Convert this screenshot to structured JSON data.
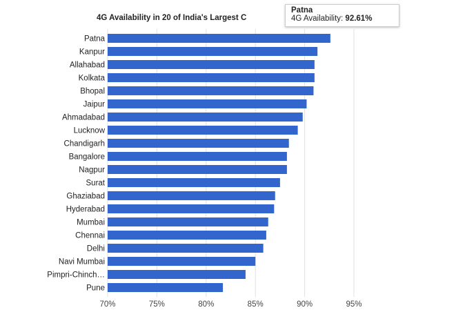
{
  "chart_data": {
    "type": "bar",
    "orientation": "horizontal",
    "title": "4G Availability in 20 of India's Largest C",
    "xlabel": "",
    "ylabel": "",
    "xlim": [
      70,
      97
    ],
    "x_ticks": [
      "70%",
      "75%",
      "80%",
      "85%",
      "90%",
      "95%"
    ],
    "x_tick_values": [
      70,
      75,
      80,
      85,
      90,
      95
    ],
    "grid": true,
    "bar_color": "#3366cc",
    "categories": [
      "Patna",
      "Kanpur",
      "Allahabad",
      "Kolkata",
      "Bhopal",
      "Jaipur",
      "Ahmadabad",
      "Lucknow",
      "Chandigarh",
      "Bangalore",
      "Nagpur",
      "Surat",
      "Ghaziabad",
      "Hyderabad",
      "Mumbai",
      "Chennai",
      "Delhi",
      "Navi Mumbai",
      "Pimpri-Chinch…",
      "Pune"
    ],
    "values": [
      92.61,
      91.3,
      91.0,
      91.0,
      90.9,
      90.2,
      89.8,
      89.3,
      88.4,
      88.2,
      88.2,
      87.5,
      87.0,
      86.9,
      86.3,
      86.1,
      85.8,
      85.0,
      84.0,
      81.7
    ],
    "series": [
      {
        "name": "4G Availability",
        "values": [
          92.61,
          91.3,
          91.0,
          91.0,
          90.9,
          90.2,
          89.8,
          89.3,
          88.4,
          88.2,
          88.2,
          87.5,
          87.0,
          86.9,
          86.3,
          86.1,
          85.8,
          85.0,
          84.0,
          81.7
        ]
      }
    ],
    "tooltip": {
      "category": "Patna",
      "label": "4G Availability:",
      "value": "92.61%"
    }
  }
}
